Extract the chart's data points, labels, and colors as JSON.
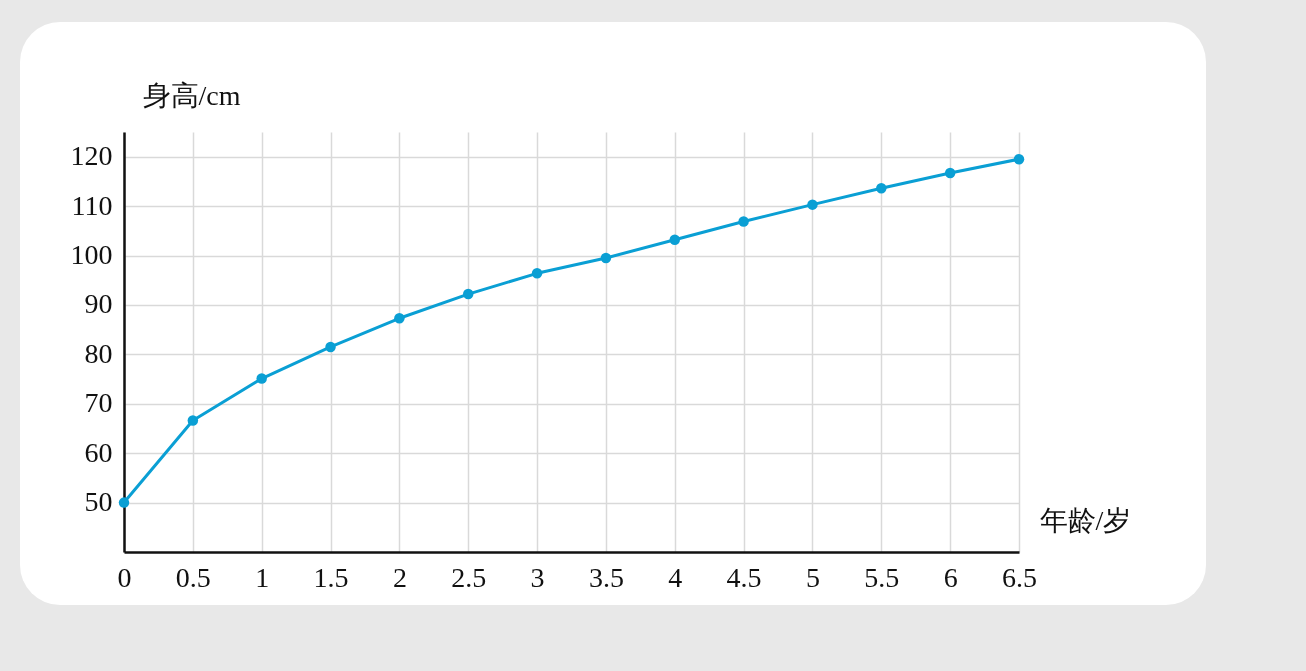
{
  "chart_data": {
    "type": "line",
    "xlabel": "年龄/岁",
    "ylabel": "身高/cm",
    "x": [
      0,
      0.5,
      1,
      1.5,
      2,
      2.5,
      3,
      3.5,
      4,
      4.5,
      5,
      5.5,
      6,
      6.5
    ],
    "series": [
      {
        "color": "#0a9fd4",
        "values": [
          50,
          66.6,
          75.1,
          81.5,
          87.3,
          92.2,
          96.4,
          99.5,
          103.2,
          106.9,
          110.3,
          113.6,
          116.7,
          119.5
        ]
      }
    ],
    "xlim": [
      0,
      6.5
    ],
    "xticks": [
      0,
      0.5,
      1,
      1.5,
      2,
      2.5,
      3,
      3.5,
      4,
      4.5,
      5,
      5.5,
      6,
      6.5
    ],
    "ylim": [
      40,
      125
    ],
    "yticks": [
      50,
      60,
      70,
      80,
      90,
      100,
      110,
      120
    ],
    "grid": true,
    "marker": "circle"
  }
}
